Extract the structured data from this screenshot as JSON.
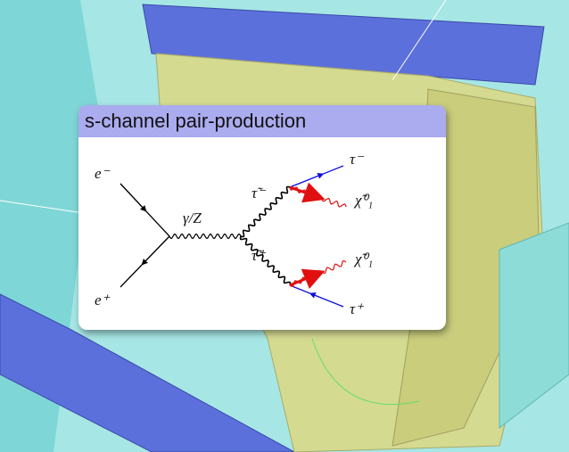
{
  "title": "s-channel pair-production",
  "diagram": {
    "incoming": [
      "e⁻",
      "e⁺"
    ],
    "propagator": "γ/Z",
    "intermediate": [
      "τ̃⁻",
      "τ̃⁺"
    ],
    "outgoing": [
      "τ⁻",
      "χ̃⁰₁",
      "χ̃⁰₁",
      "τ⁺"
    ]
  }
}
